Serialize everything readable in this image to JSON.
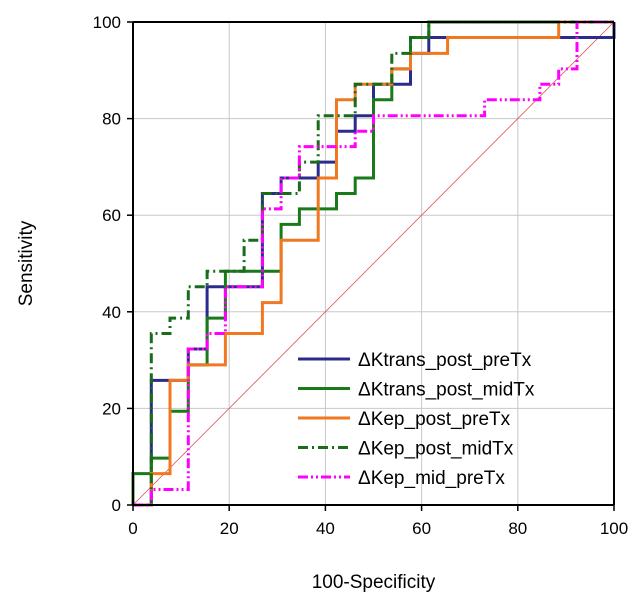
{
  "chart_data": {
    "type": "line",
    "title": "",
    "xlabel": "100-Specificity",
    "ylabel": "Sensitivity",
    "xlim": [
      0,
      100
    ],
    "ylim": [
      0,
      100
    ],
    "xticks": [
      0,
      20,
      40,
      60,
      80,
      100
    ],
    "yticks": [
      0,
      20,
      40,
      60,
      80,
      100
    ],
    "grid": true,
    "legend_position": "bottom-right",
    "reference_line": {
      "from": [
        0,
        0
      ],
      "to": [
        100,
        100
      ],
      "color": "#e05050"
    },
    "series": [
      {
        "name": "ΔKtrans_post_preTx",
        "color": "#2b2b8c",
        "dash": "solid",
        "points": [
          [
            0,
            0
          ],
          [
            3.8,
            0
          ],
          [
            3.8,
            25.8
          ],
          [
            11.5,
            25.8
          ],
          [
            11.5,
            32.3
          ],
          [
            15.4,
            32.3
          ],
          [
            15.4,
            45.2
          ],
          [
            26.9,
            45.2
          ],
          [
            26.9,
            64.5
          ],
          [
            30.8,
            64.5
          ],
          [
            30.8,
            67.7
          ],
          [
            38.5,
            67.7
          ],
          [
            38.5,
            71
          ],
          [
            42.3,
            71
          ],
          [
            42.3,
            77.4
          ],
          [
            46.2,
            77.4
          ],
          [
            46.2,
            80.6
          ],
          [
            50,
            80.6
          ],
          [
            50,
            87.1
          ],
          [
            57.7,
            87.1
          ],
          [
            57.7,
            93.5
          ],
          [
            61.5,
            93.5
          ],
          [
            61.5,
            96.8
          ],
          [
            88.5,
            96.8
          ],
          [
            88.5,
            96.8
          ],
          [
            100,
            96.8
          ],
          [
            100,
            100
          ]
        ]
      },
      {
        "name": "ΔKtrans_post_midTx",
        "color": "#1a7a1a",
        "dash": "solid",
        "points": [
          [
            0,
            0
          ],
          [
            0,
            6.5
          ],
          [
            3.8,
            6.5
          ],
          [
            3.8,
            9.7
          ],
          [
            7.7,
            9.7
          ],
          [
            7.7,
            19.4
          ],
          [
            11.5,
            19.4
          ],
          [
            11.5,
            29
          ],
          [
            15.4,
            29
          ],
          [
            15.4,
            38.7
          ],
          [
            19.2,
            38.7
          ],
          [
            19.2,
            48.4
          ],
          [
            30.8,
            48.4
          ],
          [
            30.8,
            58.1
          ],
          [
            34.6,
            58.1
          ],
          [
            34.6,
            61.3
          ],
          [
            42.3,
            61.3
          ],
          [
            42.3,
            64.5
          ],
          [
            46.2,
            64.5
          ],
          [
            46.2,
            67.7
          ],
          [
            50,
            67.7
          ],
          [
            50,
            83.9
          ],
          [
            53.8,
            83.9
          ],
          [
            53.8,
            90.3
          ],
          [
            57.7,
            90.3
          ],
          [
            57.7,
            96.8
          ],
          [
            61.5,
            96.8
          ],
          [
            61.5,
            100
          ],
          [
            100,
            100
          ]
        ]
      },
      {
        "name": "ΔKep_post_preTx",
        "color": "#f07820",
        "dash": "solid",
        "points": [
          [
            0,
            0
          ],
          [
            3.8,
            0
          ],
          [
            3.8,
            6.5
          ],
          [
            7.7,
            6.5
          ],
          [
            7.7,
            25.8
          ],
          [
            11.5,
            25.8
          ],
          [
            11.5,
            29
          ],
          [
            19.2,
            29
          ],
          [
            19.2,
            35.5
          ],
          [
            26.9,
            35.5
          ],
          [
            26.9,
            41.9
          ],
          [
            30.8,
            41.9
          ],
          [
            30.8,
            54.8
          ],
          [
            38.5,
            54.8
          ],
          [
            38.5,
            67.7
          ],
          [
            42.3,
            67.7
          ],
          [
            42.3,
            83.9
          ],
          [
            46.2,
            83.9
          ],
          [
            46.2,
            87.1
          ],
          [
            53.8,
            87.1
          ],
          [
            53.8,
            90.3
          ],
          [
            57.7,
            90.3
          ],
          [
            57.7,
            93.5
          ],
          [
            65.4,
            93.5
          ],
          [
            65.4,
            96.8
          ],
          [
            88.5,
            96.8
          ],
          [
            88.5,
            100
          ],
          [
            100,
            100
          ]
        ]
      },
      {
        "name": "ΔKep_post_midTx",
        "color": "#1a6b1a",
        "dash": "dashdot",
        "points": [
          [
            0,
            0
          ],
          [
            3.8,
            0
          ],
          [
            3.8,
            35.5
          ],
          [
            7.7,
            35.5
          ],
          [
            7.7,
            38.7
          ],
          [
            11.5,
            38.7
          ],
          [
            11.5,
            45.2
          ],
          [
            15.4,
            45.2
          ],
          [
            15.4,
            48.4
          ],
          [
            23.1,
            48.4
          ],
          [
            23.1,
            54.8
          ],
          [
            26.9,
            54.8
          ],
          [
            26.9,
            64.5
          ],
          [
            34.6,
            64.5
          ],
          [
            34.6,
            71
          ],
          [
            38.5,
            71
          ],
          [
            38.5,
            80.6
          ],
          [
            46.2,
            80.6
          ],
          [
            46.2,
            87.1
          ],
          [
            53.8,
            87.1
          ],
          [
            53.8,
            93.5
          ],
          [
            57.7,
            93.5
          ],
          [
            57.7,
            96.8
          ],
          [
            61.5,
            96.8
          ],
          [
            61.5,
            100
          ],
          [
            100,
            100
          ]
        ]
      },
      {
        "name": "ΔKep_mid_preTx",
        "color": "#ff00ff",
        "dash": "dashdotdot",
        "points": [
          [
            0,
            0
          ],
          [
            3.8,
            0
          ],
          [
            3.8,
            3.2
          ],
          [
            11.5,
            3.2
          ],
          [
            11.5,
            32.3
          ],
          [
            15.4,
            32.3
          ],
          [
            15.4,
            35.5
          ],
          [
            19.2,
            35.5
          ],
          [
            19.2,
            45.2
          ],
          [
            26.9,
            45.2
          ],
          [
            26.9,
            61.3
          ],
          [
            30.8,
            61.3
          ],
          [
            30.8,
            67.7
          ],
          [
            34.6,
            67.7
          ],
          [
            34.6,
            74.2
          ],
          [
            46.2,
            74.2
          ],
          [
            46.2,
            77.4
          ],
          [
            50,
            77.4
          ],
          [
            50,
            80.6
          ],
          [
            73.1,
            80.6
          ],
          [
            73.1,
            83.9
          ],
          [
            84.6,
            83.9
          ],
          [
            84.6,
            87.1
          ],
          [
            88.5,
            87.1
          ],
          [
            88.5,
            90.3
          ],
          [
            92.3,
            90.3
          ],
          [
            92.3,
            100
          ],
          [
            100,
            100
          ]
        ]
      }
    ]
  }
}
